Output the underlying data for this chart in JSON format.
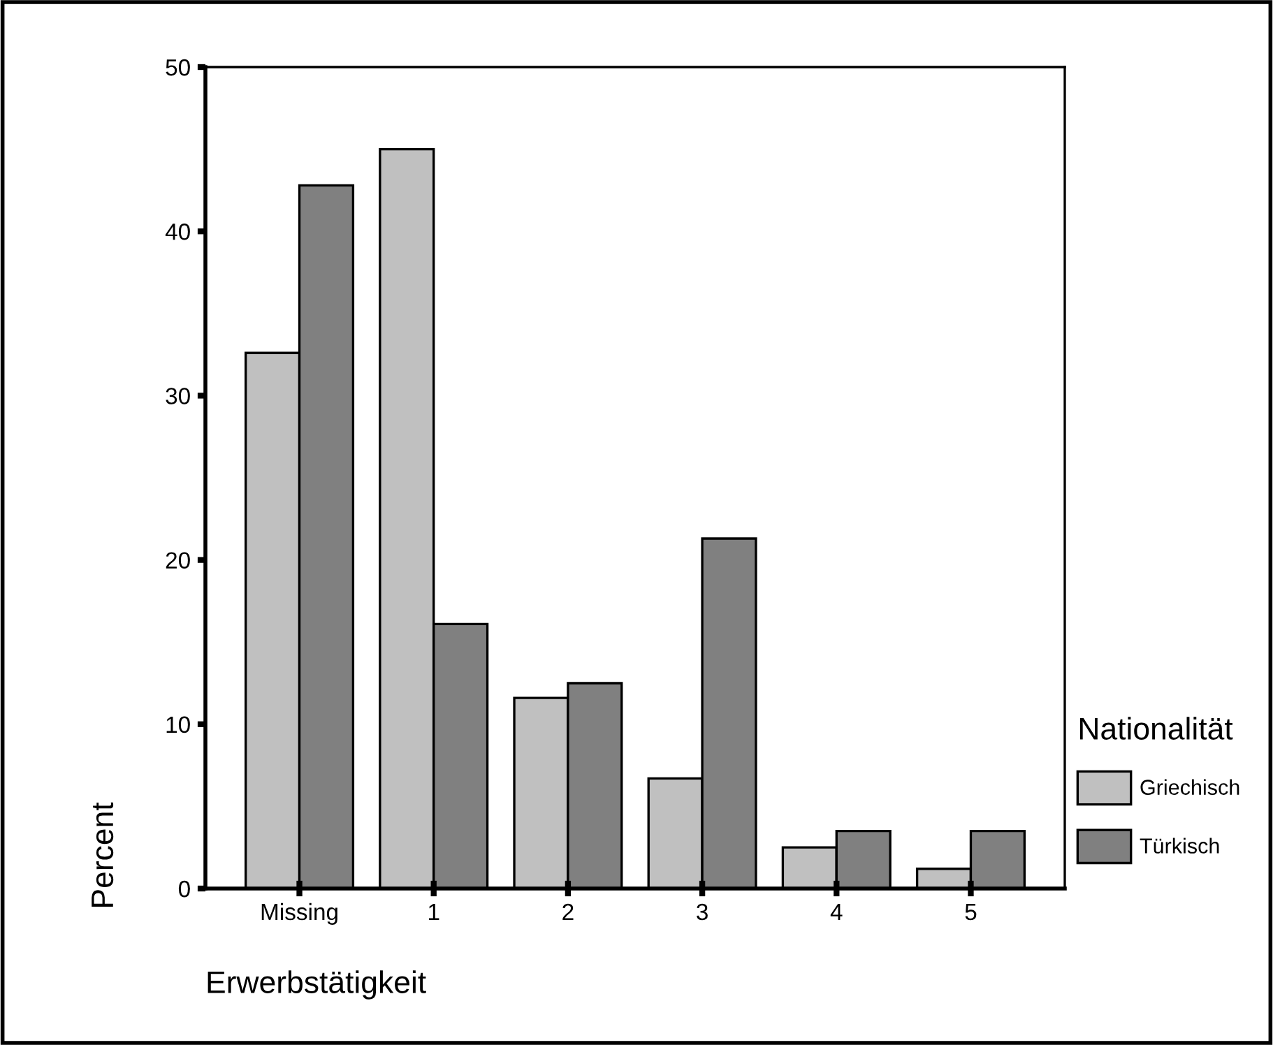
{
  "chart_data": {
    "type": "bar",
    "xlabel": "Erwerbstätigkeit",
    "ylabel": "Percent",
    "legend_title": "Nationalität",
    "categories": [
      "Missing",
      "1",
      "2",
      "3",
      "4",
      "5"
    ],
    "series": [
      {
        "name": "Griechisch",
        "color": "#c0c0c0",
        "values": [
          32.6,
          45.0,
          11.6,
          6.7,
          2.5,
          1.2
        ]
      },
      {
        "name": "Türkisch",
        "color": "#808080",
        "values": [
          42.8,
          16.1,
          12.5,
          21.3,
          3.5,
          3.5
        ]
      }
    ],
    "ylim": [
      0,
      50
    ],
    "yticks": [
      0,
      10,
      20,
      30,
      40,
      50
    ],
    "grid": false,
    "legend": "right"
  }
}
